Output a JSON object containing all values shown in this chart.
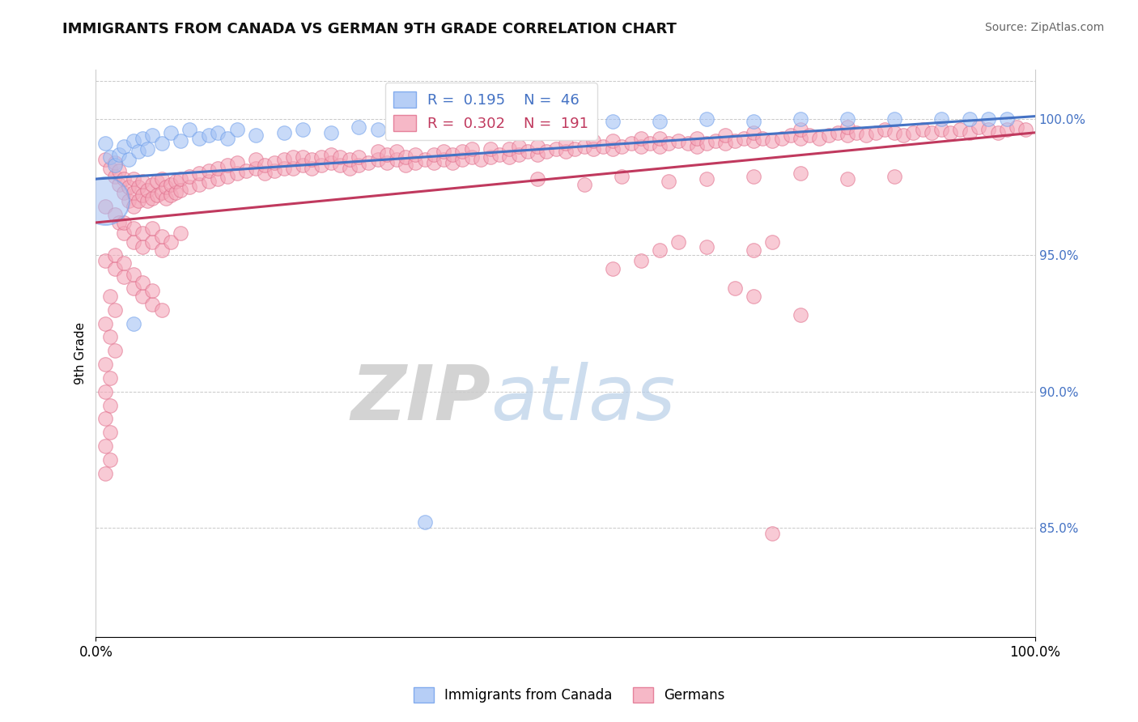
{
  "title": "IMMIGRANTS FROM CANADA VS GERMAN 9TH GRADE CORRELATION CHART",
  "source_text": "Source: ZipAtlas.com",
  "ylabel": "9th Grade",
  "right_yticks": [
    85.0,
    90.0,
    95.0,
    100.0
  ],
  "xlim": [
    0.0,
    1.0
  ],
  "ylim": [
    81.0,
    101.8
  ],
  "blue_R": 0.195,
  "blue_N": 46,
  "pink_R": 0.302,
  "pink_N": 191,
  "blue_color": "#a4c2f4",
  "pink_color": "#f4a7b9",
  "blue_edge_color": "#6d9eeb",
  "pink_edge_color": "#e06c8a",
  "blue_line_color": "#4472c4",
  "pink_line_color": "#c0395e",
  "legend_label_blue": "Immigrants from Canada",
  "legend_label_pink": "Germans",
  "blue_trend": [
    97.8,
    100.1
  ],
  "pink_trend": [
    96.2,
    99.5
  ],
  "blue_scatter": [
    [
      0.01,
      99.1
    ],
    [
      0.015,
      98.6
    ],
    [
      0.02,
      98.3
    ],
    [
      0.025,
      98.7
    ],
    [
      0.03,
      99.0
    ],
    [
      0.035,
      98.5
    ],
    [
      0.04,
      99.2
    ],
    [
      0.045,
      98.8
    ],
    [
      0.05,
      99.3
    ],
    [
      0.055,
      98.9
    ],
    [
      0.06,
      99.4
    ],
    [
      0.07,
      99.1
    ],
    [
      0.08,
      99.5
    ],
    [
      0.09,
      99.2
    ],
    [
      0.1,
      99.6
    ],
    [
      0.11,
      99.3
    ],
    [
      0.12,
      99.4
    ],
    [
      0.13,
      99.5
    ],
    [
      0.14,
      99.3
    ],
    [
      0.15,
      99.6
    ],
    [
      0.17,
      99.4
    ],
    [
      0.2,
      99.5
    ],
    [
      0.22,
      99.6
    ],
    [
      0.25,
      99.5
    ],
    [
      0.28,
      99.7
    ],
    [
      0.3,
      99.6
    ],
    [
      0.32,
      99.7
    ],
    [
      0.35,
      99.8
    ],
    [
      0.38,
      99.7
    ],
    [
      0.4,
      99.8
    ],
    [
      0.42,
      99.7
    ],
    [
      0.45,
      99.9
    ],
    [
      0.5,
      99.8
    ],
    [
      0.55,
      99.9
    ],
    [
      0.6,
      99.9
    ],
    [
      0.65,
      100.0
    ],
    [
      0.7,
      99.9
    ],
    [
      0.75,
      100.0
    ],
    [
      0.8,
      100.0
    ],
    [
      0.85,
      100.0
    ],
    [
      0.9,
      100.0
    ],
    [
      0.93,
      100.0
    ],
    [
      0.95,
      100.0
    ],
    [
      0.97,
      100.0
    ],
    [
      0.04,
      92.5
    ],
    [
      0.35,
      85.2
    ]
  ],
  "blue_big_dot": [
    0.01,
    97.0
  ],
  "pink_scatter": [
    [
      0.01,
      98.5
    ],
    [
      0.015,
      98.2
    ],
    [
      0.02,
      97.9
    ],
    [
      0.02,
      98.4
    ],
    [
      0.025,
      97.6
    ],
    [
      0.025,
      98.1
    ],
    [
      0.03,
      97.3
    ],
    [
      0.03,
      97.8
    ],
    [
      0.035,
      97.0
    ],
    [
      0.035,
      97.5
    ],
    [
      0.04,
      96.8
    ],
    [
      0.04,
      97.3
    ],
    [
      0.04,
      97.8
    ],
    [
      0.045,
      97.0
    ],
    [
      0.045,
      97.5
    ],
    [
      0.05,
      97.2
    ],
    [
      0.05,
      97.7
    ],
    [
      0.055,
      97.0
    ],
    [
      0.055,
      97.4
    ],
    [
      0.06,
      97.1
    ],
    [
      0.06,
      97.6
    ],
    [
      0.065,
      97.2
    ],
    [
      0.065,
      97.7
    ],
    [
      0.07,
      97.3
    ],
    [
      0.07,
      97.8
    ],
    [
      0.075,
      97.1
    ],
    [
      0.075,
      97.5
    ],
    [
      0.08,
      97.2
    ],
    [
      0.08,
      97.6
    ],
    [
      0.085,
      97.3
    ],
    [
      0.085,
      97.7
    ],
    [
      0.09,
      97.4
    ],
    [
      0.09,
      97.8
    ],
    [
      0.1,
      97.5
    ],
    [
      0.1,
      97.9
    ],
    [
      0.11,
      97.6
    ],
    [
      0.11,
      98.0
    ],
    [
      0.12,
      97.7
    ],
    [
      0.12,
      98.1
    ],
    [
      0.13,
      97.8
    ],
    [
      0.13,
      98.2
    ],
    [
      0.14,
      97.9
    ],
    [
      0.14,
      98.3
    ],
    [
      0.15,
      98.0
    ],
    [
      0.15,
      98.4
    ],
    [
      0.16,
      98.1
    ],
    [
      0.17,
      98.2
    ],
    [
      0.17,
      98.5
    ],
    [
      0.18,
      98.0
    ],
    [
      0.18,
      98.3
    ],
    [
      0.19,
      98.1
    ],
    [
      0.19,
      98.4
    ],
    [
      0.2,
      98.2
    ],
    [
      0.2,
      98.5
    ],
    [
      0.21,
      98.2
    ],
    [
      0.21,
      98.6
    ],
    [
      0.22,
      98.3
    ],
    [
      0.22,
      98.6
    ],
    [
      0.23,
      98.2
    ],
    [
      0.23,
      98.5
    ],
    [
      0.24,
      98.3
    ],
    [
      0.24,
      98.6
    ],
    [
      0.25,
      98.4
    ],
    [
      0.25,
      98.7
    ],
    [
      0.26,
      98.3
    ],
    [
      0.26,
      98.6
    ],
    [
      0.27,
      98.2
    ],
    [
      0.27,
      98.5
    ],
    [
      0.28,
      98.3
    ],
    [
      0.28,
      98.6
    ],
    [
      0.29,
      98.4
    ],
    [
      0.3,
      98.5
    ],
    [
      0.3,
      98.8
    ],
    [
      0.31,
      98.4
    ],
    [
      0.31,
      98.7
    ],
    [
      0.32,
      98.5
    ],
    [
      0.32,
      98.8
    ],
    [
      0.33,
      98.3
    ],
    [
      0.33,
      98.6
    ],
    [
      0.34,
      98.4
    ],
    [
      0.34,
      98.7
    ],
    [
      0.35,
      98.5
    ],
    [
      0.36,
      98.4
    ],
    [
      0.36,
      98.7
    ],
    [
      0.37,
      98.5
    ],
    [
      0.37,
      98.8
    ],
    [
      0.38,
      98.4
    ],
    [
      0.38,
      98.7
    ],
    [
      0.39,
      98.5
    ],
    [
      0.39,
      98.8
    ],
    [
      0.4,
      98.6
    ],
    [
      0.4,
      98.9
    ],
    [
      0.41,
      98.5
    ],
    [
      0.42,
      98.6
    ],
    [
      0.42,
      98.9
    ],
    [
      0.43,
      98.7
    ],
    [
      0.44,
      98.6
    ],
    [
      0.44,
      98.9
    ],
    [
      0.45,
      98.7
    ],
    [
      0.45,
      99.0
    ],
    [
      0.46,
      98.8
    ],
    [
      0.47,
      98.7
    ],
    [
      0.47,
      99.0
    ],
    [
      0.48,
      98.8
    ],
    [
      0.49,
      98.9
    ],
    [
      0.5,
      98.8
    ],
    [
      0.5,
      99.1
    ],
    [
      0.51,
      98.9
    ],
    [
      0.52,
      99.0
    ],
    [
      0.53,
      98.9
    ],
    [
      0.53,
      99.2
    ],
    [
      0.54,
      99.0
    ],
    [
      0.55,
      98.9
    ],
    [
      0.55,
      99.2
    ],
    [
      0.56,
      99.0
    ],
    [
      0.57,
      99.1
    ],
    [
      0.58,
      99.0
    ],
    [
      0.58,
      99.3
    ],
    [
      0.59,
      99.1
    ],
    [
      0.6,
      99.0
    ],
    [
      0.6,
      99.3
    ],
    [
      0.61,
      99.1
    ],
    [
      0.62,
      99.2
    ],
    [
      0.63,
      99.1
    ],
    [
      0.64,
      99.0
    ],
    [
      0.64,
      99.3
    ],
    [
      0.65,
      99.1
    ],
    [
      0.66,
      99.2
    ],
    [
      0.67,
      99.1
    ],
    [
      0.67,
      99.4
    ],
    [
      0.68,
      99.2
    ],
    [
      0.69,
      99.3
    ],
    [
      0.7,
      99.2
    ],
    [
      0.7,
      99.5
    ],
    [
      0.71,
      99.3
    ],
    [
      0.72,
      99.2
    ],
    [
      0.73,
      99.3
    ],
    [
      0.74,
      99.4
    ],
    [
      0.75,
      99.3
    ],
    [
      0.75,
      99.6
    ],
    [
      0.76,
      99.4
    ],
    [
      0.77,
      99.3
    ],
    [
      0.78,
      99.4
    ],
    [
      0.79,
      99.5
    ],
    [
      0.8,
      99.4
    ],
    [
      0.8,
      99.7
    ],
    [
      0.81,
      99.5
    ],
    [
      0.82,
      99.4
    ],
    [
      0.83,
      99.5
    ],
    [
      0.84,
      99.6
    ],
    [
      0.85,
      99.5
    ],
    [
      0.86,
      99.4
    ],
    [
      0.87,
      99.5
    ],
    [
      0.88,
      99.6
    ],
    [
      0.89,
      99.5
    ],
    [
      0.9,
      99.6
    ],
    [
      0.91,
      99.5
    ],
    [
      0.92,
      99.6
    ],
    [
      0.93,
      99.5
    ],
    [
      0.94,
      99.7
    ],
    [
      0.95,
      99.6
    ],
    [
      0.96,
      99.5
    ],
    [
      0.97,
      99.6
    ],
    [
      0.98,
      99.7
    ],
    [
      0.99,
      99.6
    ],
    [
      0.47,
      97.8
    ],
    [
      0.52,
      97.6
    ],
    [
      0.56,
      97.9
    ],
    [
      0.61,
      97.7
    ],
    [
      0.65,
      97.8
    ],
    [
      0.7,
      97.9
    ],
    [
      0.75,
      98.0
    ],
    [
      0.8,
      97.8
    ],
    [
      0.85,
      97.9
    ],
    [
      0.01,
      96.8
    ],
    [
      0.02,
      96.5
    ],
    [
      0.025,
      96.2
    ],
    [
      0.03,
      95.8
    ],
    [
      0.03,
      96.2
    ],
    [
      0.04,
      95.5
    ],
    [
      0.04,
      96.0
    ],
    [
      0.05,
      95.3
    ],
    [
      0.05,
      95.8
    ],
    [
      0.06,
      95.5
    ],
    [
      0.06,
      96.0
    ],
    [
      0.07,
      95.2
    ],
    [
      0.07,
      95.7
    ],
    [
      0.08,
      95.5
    ],
    [
      0.09,
      95.8
    ],
    [
      0.01,
      94.8
    ],
    [
      0.02,
      94.5
    ],
    [
      0.02,
      95.0
    ],
    [
      0.03,
      94.2
    ],
    [
      0.03,
      94.7
    ],
    [
      0.04,
      93.8
    ],
    [
      0.04,
      94.3
    ],
    [
      0.05,
      93.5
    ],
    [
      0.05,
      94.0
    ],
    [
      0.06,
      93.2
    ],
    [
      0.06,
      93.7
    ],
    [
      0.07,
      93.0
    ],
    [
      0.015,
      93.5
    ],
    [
      0.02,
      93.0
    ],
    [
      0.01,
      92.5
    ],
    [
      0.015,
      92.0
    ],
    [
      0.02,
      91.5
    ],
    [
      0.01,
      91.0
    ],
    [
      0.015,
      90.5
    ],
    [
      0.01,
      90.0
    ],
    [
      0.015,
      89.5
    ],
    [
      0.01,
      89.0
    ],
    [
      0.015,
      88.5
    ],
    [
      0.01,
      88.0
    ],
    [
      0.015,
      87.5
    ],
    [
      0.01,
      87.0
    ],
    [
      0.6,
      95.2
    ],
    [
      0.62,
      95.5
    ],
    [
      0.65,
      95.3
    ],
    [
      0.7,
      95.2
    ],
    [
      0.72,
      95.5
    ],
    [
      0.55,
      94.5
    ],
    [
      0.58,
      94.8
    ],
    [
      0.68,
      93.8
    ],
    [
      0.7,
      93.5
    ],
    [
      0.75,
      92.8
    ],
    [
      0.72,
      84.8
    ]
  ]
}
